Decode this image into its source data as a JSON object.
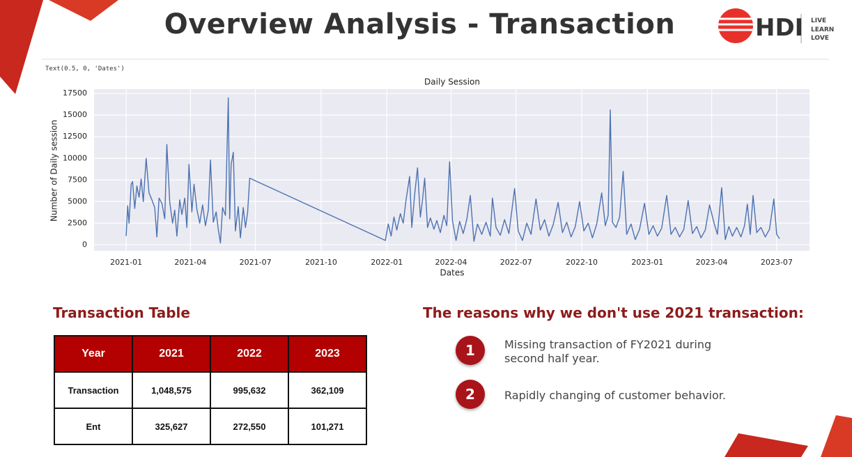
{
  "header": {
    "title": "Overview Analysis - Transaction",
    "logo": "HDI",
    "tagline": [
      "LIVE",
      "LEARN",
      "LOVE"
    ]
  },
  "output_text": "Text(0.5, 0, 'Dates')",
  "chart_data": {
    "type": "line",
    "title": "Daily Session",
    "x_label": "Dates",
    "y_label": "Number of Daily session",
    "x": [
      "2021-01-01",
      "2021-01-03",
      "2021-01-05",
      "2021-01-08",
      "2021-01-10",
      "2021-01-13",
      "2021-01-16",
      "2021-01-19",
      "2021-01-22",
      "2021-01-25",
      "2021-01-29",
      "2021-02-02",
      "2021-02-06",
      "2021-02-10",
      "2021-02-13",
      "2021-02-16",
      "2021-02-20",
      "2021-02-24",
      "2021-02-27",
      "2021-03-03",
      "2021-03-07",
      "2021-03-10",
      "2021-03-13",
      "2021-03-17",
      "2021-03-20",
      "2021-03-24",
      "2021-03-27",
      "2021-03-30",
      "2021-04-03",
      "2021-04-06",
      "2021-04-10",
      "2021-04-14",
      "2021-04-18",
      "2021-04-22",
      "2021-04-26",
      "2021-04-29",
      "2021-05-03",
      "2021-05-07",
      "2021-05-10",
      "2021-05-13",
      "2021-05-16",
      "2021-05-20",
      "2021-05-24",
      "2021-05-26",
      "2021-05-28",
      "2021-05-31",
      "2021-06-03",
      "2021-06-07",
      "2021-06-10",
      "2021-06-14",
      "2021-06-17",
      "2021-06-20",
      "2021-06-23",
      "2021-12-30",
      "2022-01-03",
      "2022-01-07",
      "2022-01-11",
      "2022-01-15",
      "2022-01-20",
      "2022-01-24",
      "2022-01-28",
      "2022-02-02",
      "2022-02-05",
      "2022-02-09",
      "2022-02-13",
      "2022-02-17",
      "2022-02-20",
      "2022-02-23",
      "2022-02-27",
      "2022-03-03",
      "2022-03-08",
      "2022-03-12",
      "2022-03-17",
      "2022-03-22",
      "2022-03-26",
      "2022-03-30",
      "2022-04-03",
      "2022-04-08",
      "2022-04-13",
      "2022-04-18",
      "2022-04-23",
      "2022-04-28",
      "2022-05-03",
      "2022-05-08",
      "2022-05-14",
      "2022-05-20",
      "2022-05-26",
      "2022-05-29",
      "2022-06-03",
      "2022-06-09",
      "2022-06-15",
      "2022-06-21",
      "2022-06-29",
      "2022-07-04",
      "2022-07-10",
      "2022-07-16",
      "2022-07-22",
      "2022-07-29",
      "2022-08-04",
      "2022-08-10",
      "2022-08-16",
      "2022-08-22",
      "2022-08-29",
      "2022-09-04",
      "2022-09-10",
      "2022-09-16",
      "2022-09-22",
      "2022-09-28",
      "2022-10-04",
      "2022-10-10",
      "2022-10-16",
      "2022-10-22",
      "2022-10-29",
      "2022-11-03",
      "2022-11-07",
      "2022-11-10",
      "2022-11-13",
      "2022-11-18",
      "2022-11-23",
      "2022-11-28",
      "2022-12-03",
      "2022-12-09",
      "2022-12-15",
      "2022-12-21",
      "2022-12-28",
      "2023-01-03",
      "2023-01-09",
      "2023-01-15",
      "2023-01-21",
      "2023-01-28",
      "2023-02-03",
      "2023-02-09",
      "2023-02-15",
      "2023-02-21",
      "2023-02-27",
      "2023-03-05",
      "2023-03-11",
      "2023-03-17",
      "2023-03-23",
      "2023-03-29",
      "2023-04-04",
      "2023-04-09",
      "2023-04-15",
      "2023-04-20",
      "2023-04-25",
      "2023-04-30",
      "2023-05-06",
      "2023-05-12",
      "2023-05-17",
      "2023-05-21",
      "2023-05-25",
      "2023-05-29",
      "2023-06-03",
      "2023-06-09",
      "2023-06-15",
      "2023-06-21",
      "2023-06-27",
      "2023-07-01",
      "2023-07-05"
    ],
    "values": [
      1000,
      4500,
      2500,
      7000,
      7300,
      4200,
      6800,
      5500,
      7600,
      5000,
      10000,
      6000,
      5200,
      4300,
      900,
      5400,
      4800,
      3000,
      11600,
      5000,
      2500,
      4000,
      1000,
      5200,
      3500,
      5400,
      2000,
      9300,
      3800,
      7000,
      4100,
      2500,
      4600,
      2200,
      4000,
      9800,
      2600,
      3800,
      1800,
      200,
      4300,
      3400,
      17000,
      3000,
      9300,
      10700,
      1600,
      4400,
      800,
      4300,
      2000,
      3700,
      7700,
      500,
      2400,
      1000,
      3200,
      1700,
      3600,
      2500,
      5200,
      7900,
      2000,
      5800,
      8900,
      3200,
      5200,
      7700,
      2000,
      3100,
      1800,
      2800,
      1400,
      3400,
      2200,
      9600,
      2800,
      500,
      2700,
      1300,
      2900,
      5700,
      400,
      2400,
      1200,
      2600,
      1000,
      5400,
      2000,
      1100,
      2900,
      1300,
      6500,
      1600,
      500,
      2500,
      1200,
      5300,
      1700,
      2900,
      1000,
      2300,
      4900,
      1400,
      2600,
      900,
      2100,
      5000,
      1600,
      2500,
      800,
      2400,
      6000,
      2200,
      3400,
      15600,
      2600,
      2000,
      3200,
      8500,
      1200,
      2400,
      600,
      1800,
      4800,
      1200,
      2200,
      1000,
      1900,
      5700,
      1200,
      2000,
      900,
      1800,
      5100,
      1300,
      2100,
      800,
      1700,
      4600,
      2600,
      1200,
      6600,
      600,
      2100,
      1000,
      2000,
      900,
      2200,
      4700,
      1200,
      5700,
      1400,
      2000,
      900,
      1800,
      5300,
      1200,
      700
    ],
    "color": "#4c72b0",
    "xlim": [
      "2020-11-17",
      "2023-08-16"
    ],
    "xticks": [
      "2021-01",
      "2021-04",
      "2021-07",
      "2021-10",
      "2022-01",
      "2022-04",
      "2022-07",
      "2022-10",
      "2023-01",
      "2023-04",
      "2023-07"
    ],
    "ylim": [
      -700,
      18000
    ],
    "yticks": [
      0,
      2500,
      5000,
      7500,
      10000,
      12500,
      15000,
      17500
    ],
    "grid": true
  },
  "table": {
    "title": "Transaction Table",
    "rows": [
      [
        "Year",
        "2021",
        "2022",
        "2023"
      ],
      [
        "Transaction",
        "1,048,575",
        "995,632",
        "362,109"
      ],
      [
        "Ent",
        "325,627",
        "272,550",
        "101,271"
      ]
    ]
  },
  "reasons": {
    "title": "The reasons why we don't use 2021 transaction:",
    "items": [
      {
        "number": "1",
        "text": "Missing transaction of FY2021 during second half year."
      },
      {
        "number": "2",
        "text": "Rapidly changing of customer behavior."
      }
    ]
  }
}
